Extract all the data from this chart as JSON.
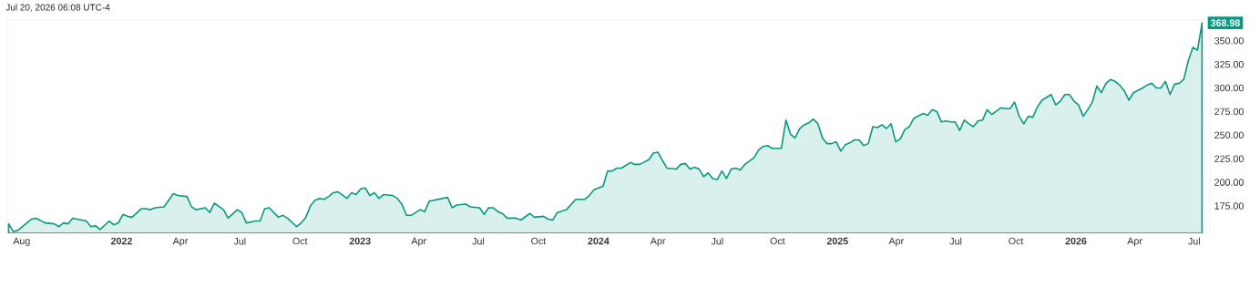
{
  "chart_data": {
    "type": "area",
    "color": "#089981",
    "x": [
      "2021-07-12",
      "2021-07-19",
      "2021-07-26",
      "2021-08-16",
      "2021-08-23",
      "2021-09-06",
      "2021-09-20",
      "2021-09-27",
      "2021-10-04",
      "2021-10-11",
      "2021-10-18",
      "2021-11-08",
      "2021-11-15",
      "2021-11-22",
      "2021-11-29",
      "2021-12-13",
      "2021-12-20",
      "2021-12-27",
      "2022-01-03",
      "2022-01-10",
      "2022-01-17",
      "2022-01-31",
      "2022-02-07",
      "2022-02-14",
      "2022-02-21",
      "2022-03-07",
      "2022-03-21",
      "2022-03-28",
      "2022-04-11",
      "2022-04-18",
      "2022-04-25",
      "2022-05-09",
      "2022-05-16",
      "2022-05-23",
      "2022-06-06",
      "2022-06-13",
      "2022-06-27",
      "2022-07-04",
      "2022-07-11",
      "2022-07-25",
      "2022-08-01",
      "2022-08-08",
      "2022-08-15",
      "2022-08-29",
      "2022-09-05",
      "2022-09-12",
      "2022-09-26",
      "2022-10-03",
      "2022-10-10",
      "2022-10-17",
      "2022-10-24",
      "2022-10-31",
      "2022-11-07",
      "2022-11-14",
      "2022-11-21",
      "2022-11-28",
      "2022-12-12",
      "2022-12-19",
      "2022-12-26",
      "2023-01-02",
      "2023-01-09",
      "2023-01-16",
      "2023-01-23",
      "2023-01-30",
      "2023-02-06",
      "2023-02-20",
      "2023-02-27",
      "2023-03-06",
      "2023-03-13",
      "2023-03-20",
      "2023-04-03",
      "2023-04-10",
      "2023-04-17",
      "2023-05-01",
      "2023-05-15",
      "2023-05-22",
      "2023-05-29",
      "2023-06-12",
      "2023-06-19",
      "2023-07-03",
      "2023-07-10",
      "2023-07-17",
      "2023-07-24",
      "2023-07-31",
      "2023-08-07",
      "2023-08-14",
      "2023-08-28",
      "2023-09-04",
      "2023-09-18",
      "2023-09-25",
      "2023-10-09",
      "2023-10-16",
      "2023-10-23",
      "2023-10-30",
      "2023-11-13",
      "2023-11-27",
      "2023-12-11",
      "2023-12-18",
      "2023-12-25",
      "2024-01-08",
      "2024-01-15",
      "2024-01-22",
      "2024-01-29",
      "2024-02-05",
      "2024-02-19",
      "2024-02-26",
      "2024-03-04",
      "2024-03-18",
      "2024-03-25",
      "2024-04-01",
      "2024-04-08",
      "2024-04-15",
      "2024-04-29",
      "2024-05-06",
      "2024-05-13",
      "2024-05-20",
      "2024-05-27",
      "2024-06-03",
      "2024-06-10",
      "2024-06-17",
      "2024-06-24",
      "2024-07-01",
      "2024-07-08",
      "2024-07-15",
      "2024-07-22",
      "2024-07-29",
      "2024-08-05",
      "2024-08-12",
      "2024-08-26",
      "2024-09-02",
      "2024-09-09",
      "2024-09-16",
      "2024-09-23",
      "2024-10-07",
      "2024-10-14",
      "2024-10-21",
      "2024-10-28",
      "2024-11-04",
      "2024-11-11",
      "2024-11-18",
      "2024-11-25",
      "2024-12-02",
      "2024-12-09",
      "2024-12-16",
      "2024-12-23",
      "2024-12-30",
      "2025-01-06",
      "2025-01-13",
      "2025-01-20",
      "2025-01-27",
      "2025-02-03",
      "2025-02-10",
      "2025-02-17",
      "2025-02-24",
      "2025-03-03",
      "2025-03-10",
      "2025-03-17",
      "2025-03-24",
      "2025-03-31",
      "2025-04-07",
      "2025-04-14",
      "2025-04-21",
      "2025-04-28",
      "2025-05-12",
      "2025-05-19",
      "2025-05-26",
      "2025-06-02",
      "2025-06-09",
      "2025-06-16",
      "2025-06-23",
      "2025-06-30",
      "2025-07-07",
      "2025-07-14",
      "2025-07-21",
      "2025-07-28",
      "2025-08-04",
      "2025-08-11",
      "2025-08-18",
      "2025-08-25",
      "2025-09-08",
      "2025-09-15",
      "2025-09-22",
      "2025-09-29",
      "2025-10-06",
      "2025-10-13",
      "2025-10-20",
      "2025-10-27",
      "2025-11-03",
      "2025-11-10",
      "2025-11-24",
      "2025-12-01",
      "2025-12-08",
      "2025-12-15",
      "2025-12-22",
      "2025-12-29",
      "2026-01-05",
      "2026-01-12",
      "2026-01-19",
      "2026-01-26",
      "2026-02-02",
      "2026-02-09",
      "2026-02-16",
      "2026-02-23",
      "2026-03-02",
      "2026-03-09",
      "2026-03-16",
      "2026-03-23",
      "2026-03-30",
      "2026-04-13",
      "2026-04-20",
      "2026-04-27",
      "2026-05-04",
      "2026-05-11",
      "2026-05-18",
      "2026-05-25",
      "2026-06-01",
      "2026-06-08",
      "2026-06-15",
      "2026-06-22",
      "2026-06-29",
      "2026-07-06",
      "2026-07-13"
    ],
    "values": [
      156,
      148,
      149,
      161,
      162,
      157,
      156,
      153,
      157,
      156,
      162,
      159,
      153,
      154,
      150,
      159,
      155,
      157,
      166,
      164,
      163,
      172,
      172,
      171,
      173,
      174,
      188,
      186,
      185,
      174,
      171,
      173,
      168,
      178,
      171,
      162,
      171,
      168,
      157,
      159,
      159,
      172,
      173,
      163,
      165,
      162,
      153,
      157,
      163,
      175,
      181,
      183,
      182,
      185,
      189,
      190,
      183,
      189,
      187,
      193,
      194,
      186,
      189,
      183,
      187,
      186,
      183,
      177,
      165,
      165,
      171,
      169,
      180,
      182,
      184,
      173,
      176,
      177,
      174,
      173,
      166,
      173,
      173,
      169,
      167,
      162,
      162,
      160,
      167,
      163,
      164,
      161,
      160,
      168,
      171,
      182,
      182,
      186,
      192,
      196,
      212,
      212,
      215,
      215,
      221,
      219,
      219,
      224,
      231,
      232,
      223,
      215,
      214,
      219,
      220,
      214,
      216,
      214,
      206,
      210,
      204,
      203,
      212,
      204,
      214,
      215,
      213,
      219,
      226,
      234,
      238,
      239,
      236,
      236,
      266,
      251,
      247,
      257,
      261,
      263,
      267,
      262,
      247,
      241,
      241,
      243,
      233,
      240,
      242,
      245,
      245,
      239,
      241,
      259,
      258,
      261,
      257,
      262,
      243,
      246,
      256,
      259,
      268,
      273,
      271,
      277,
      275,
      264,
      265,
      264,
      264,
      255,
      266,
      262,
      259,
      265,
      266,
      277,
      272,
      279,
      278,
      278,
      285,
      270,
      262,
      270,
      269,
      280,
      287,
      293,
      282,
      286,
      293,
      293,
      286,
      282,
      270,
      277,
      285,
      302,
      295,
      305,
      309,
      307,
      303,
      297,
      287,
      295,
      300,
      303,
      305,
      300,
      300,
      307,
      293,
      304,
      305,
      309,
      329,
      343,
      340,
      368.98
    ],
    "xlim": [
      "2021-07-10",
      "2026-07-25"
    ],
    "ylim": [
      146,
      372
    ],
    "xticks": [
      {
        "value": "2021-08-01",
        "label": "Aug"
      },
      {
        "value": "2022-01-01",
        "label": "2022"
      },
      {
        "value": "2022-04-01",
        "label": "Apr"
      },
      {
        "value": "2022-07-01",
        "label": "Jul"
      },
      {
        "value": "2022-10-01",
        "label": "Oct"
      },
      {
        "value": "2023-01-01",
        "label": "2023"
      },
      {
        "value": "2023-04-01",
        "label": "Apr"
      },
      {
        "value": "2023-07-01",
        "label": "Jul"
      },
      {
        "value": "2023-10-01",
        "label": "Oct"
      },
      {
        "value": "2024-01-01",
        "label": "2024"
      },
      {
        "value": "2024-04-01",
        "label": "Apr"
      },
      {
        "value": "2024-07-01",
        "label": "Jul"
      },
      {
        "value": "2024-10-01",
        "label": "Oct"
      },
      {
        "value": "2025-01-01",
        "label": "2025"
      },
      {
        "value": "2025-04-01",
        "label": "Apr"
      },
      {
        "value": "2025-07-01",
        "label": "Jul"
      },
      {
        "value": "2025-10-01",
        "label": "Oct"
      },
      {
        "value": "2026-01-01",
        "label": "2026"
      },
      {
        "value": "2026-04-01",
        "label": "Apr"
      },
      {
        "value": "2026-07-01",
        "label": "Jul"
      }
    ],
    "yticks": [
      {
        "value": 175,
        "label": "175.00"
      },
      {
        "value": 200,
        "label": "200.00"
      },
      {
        "value": 225,
        "label": "225.00"
      },
      {
        "value": 250,
        "label": "250.00"
      },
      {
        "value": 275,
        "label": "275.00"
      },
      {
        "value": 300,
        "label": "300.00"
      },
      {
        "value": 325,
        "label": "325.00"
      },
      {
        "value": 350,
        "label": "350.00"
      }
    ],
    "annotations": [
      "Jul 20, 2026 06:08 UTC-4",
      {
        "text": "368.98",
        "x": "2026-07-13",
        "y": 368.98
      }
    ]
  }
}
